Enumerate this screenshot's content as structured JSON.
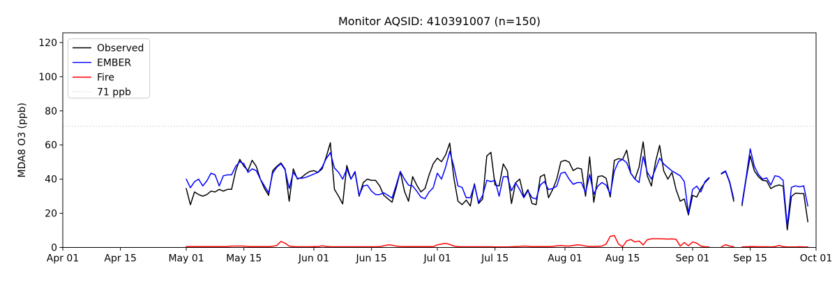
{
  "title": "Monitor AQSID: 410391007 (n=150)",
  "axes": {
    "ylabel": "MDA8 O3 (ppb)",
    "yticks": [
      0,
      20,
      40,
      60,
      80,
      100,
      120
    ],
    "xticks": [
      {
        "day": 0,
        "label": "Apr 01"
      },
      {
        "day": 14,
        "label": "Apr 15"
      },
      {
        "day": 30,
        "label": "May 01"
      },
      {
        "day": 44,
        "label": "May 15"
      },
      {
        "day": 61,
        "label": "Jun 01"
      },
      {
        "day": 75,
        "label": "Jun 15"
      },
      {
        "day": 91,
        "label": "Jul 01"
      },
      {
        "day": 105,
        "label": "Jul 15"
      },
      {
        "day": 122,
        "label": "Aug 01"
      },
      {
        "day": 136,
        "label": "Aug 15"
      },
      {
        "day": 153,
        "label": "Sep 01"
      },
      {
        "day": 167,
        "label": "Sep 15"
      },
      {
        "day": 183,
        "label": "Oct 01"
      }
    ]
  },
  "legend": {
    "entries": [
      {
        "label": "Observed",
        "color": "#000000",
        "style": "solid"
      },
      {
        "label": "EMBER",
        "color": "#0000ff",
        "style": "solid"
      },
      {
        "label": "Fire",
        "color": "#ff0000",
        "style": "solid"
      },
      {
        "label": "71 ppb",
        "color": "#d3d3d3",
        "style": "dotted"
      }
    ]
  },
  "chart_data": {
    "type": "line",
    "title": "Monitor AQSID: 410391007 (n=150)",
    "xlabel": "",
    "ylabel": "MDA8 O3 (ppb)",
    "x_axis_range": [
      "Apr 01",
      "Oct 01"
    ],
    "x_total_days": 183,
    "x_start_label": "May 01",
    "x_start_day_offset": 30,
    "x_step_days": 1,
    "ylim": [
      0,
      125.7
    ],
    "grid": false,
    "legend_position": "upper-left",
    "threshold": {
      "value": 71,
      "label": "71 ppb",
      "color": "#d3d3d3",
      "style": "dotted"
    },
    "series": [
      {
        "name": "Observed",
        "color": "#000000",
        "values": [
          34.5,
          25,
          32.5,
          31,
          30,
          31,
          33,
          32.5,
          34,
          33,
          34,
          34,
          44.8,
          51.6,
          47.5,
          45,
          51,
          47.5,
          40,
          34.5,
          30.5,
          45,
          47.5,
          49.5,
          46,
          27,
          46,
          40,
          41,
          43,
          44.5,
          45,
          44,
          46,
          53,
          61.3,
          34,
          30,
          25.5,
          48,
          40,
          44,
          30,
          38,
          40,
          39.3,
          39.3,
          36,
          30.5,
          28.5,
          26.5,
          35,
          44.5,
          33,
          27,
          41.5,
          36.5,
          32.5,
          34.5,
          42.5,
          49,
          52.3,
          50.2,
          54.3,
          61.1,
          40.7,
          27.1,
          25.1,
          27.7,
          24.3,
          37.3,
          25.7,
          28.4,
          53.6,
          55.7,
          36.6,
          36,
          48.9,
          44.8,
          25.7,
          37.9,
          40,
          29.8,
          33.9,
          25.7,
          25.1,
          41.4,
          42.7,
          29.1,
          33.9,
          40,
          50.2,
          51,
          50,
          45,
          46.5,
          46,
          30,
          53,
          26.5,
          41.5,
          42,
          40.5,
          29.5,
          51,
          52,
          51.5,
          57,
          43.5,
          40,
          47,
          61.8,
          42,
          36,
          50,
          59.8,
          44.8,
          40,
          44,
          33.9,
          27.1,
          28.4,
          19,
          30.5,
          29.5,
          34.5,
          38,
          40.5,
          null,
          null,
          43,
          44.5,
          38,
          27,
          null,
          24.5,
          40,
          53.6,
          44.8,
          41.4,
          39.3,
          39,
          34.5,
          35.9,
          36.6,
          35.9,
          10.3,
          29.8,
          31.8,
          31.6,
          31.5,
          15
        ]
      },
      {
        "name": "EMBER",
        "color": "#0000ff",
        "values": [
          40,
          35,
          38.5,
          40,
          36,
          39,
          43.5,
          42.5,
          36,
          42,
          42.5,
          42.5,
          47.5,
          50.2,
          49,
          44,
          46,
          45,
          40,
          36,
          32,
          43.5,
          47,
          49,
          45.5,
          34.5,
          44,
          40.5,
          40.5,
          41,
          42,
          43,
          44,
          47,
          52,
          55.5,
          46.5,
          44,
          40,
          46,
          40,
          44.5,
          30.5,
          36,
          36.5,
          33,
          31,
          31,
          32,
          30.5,
          29,
          36.5,
          44.5,
          40,
          36.5,
          36,
          33,
          29.5,
          28.5,
          32.5,
          35,
          43.5,
          40,
          47,
          56.3,
          47.5,
          36,
          35.2,
          29.1,
          29.1,
          36.6,
          26.4,
          30.5,
          39.3,
          38.6,
          39.3,
          30,
          41.4,
          41.4,
          33.2,
          37.9,
          33.9,
          29.1,
          33.2,
          29.1,
          28.4,
          36.6,
          38.6,
          33.9,
          34.5,
          35.9,
          43.4,
          44.1,
          40,
          37,
          38,
          38,
          32,
          42.7,
          31.2,
          36,
          38,
          36.5,
          31.2,
          44.8,
          50.2,
          51.6,
          49.6,
          43.4,
          40,
          38,
          53.3,
          44.1,
          40,
          46,
          52.3,
          48.9,
          46.8,
          44.8,
          43.4,
          42,
          38.6,
          20,
          34,
          35.9,
          32.5,
          38.6,
          40.9,
          null,
          null,
          43.4,
          44.8,
          38.6,
          28.4,
          null,
          25.7,
          41,
          57.7,
          47.5,
          42.7,
          40,
          40.7,
          36.6,
          42,
          41.5,
          39.3,
          12.5,
          35.2,
          36.1,
          35.5,
          36.1,
          24.3
        ]
      },
      {
        "name": "Fire",
        "color": "#ff0000",
        "values": [
          0.5,
          0.5,
          0.5,
          0.5,
          0.5,
          0.5,
          0.5,
          0.5,
          0.5,
          0.5,
          0.5,
          0.8,
          0.8,
          0.8,
          0.8,
          0.5,
          0.5,
          0.5,
          0.5,
          0.5,
          0.5,
          0.7,
          1.2,
          3.5,
          2.5,
          0.8,
          0.5,
          0.4,
          0.4,
          0.4,
          0.4,
          0.5,
          0.5,
          1.0,
          0.6,
          0.4,
          0.4,
          0.4,
          0.4,
          0.4,
          0.4,
          0.4,
          0.4,
          0.4,
          0.4,
          0.4,
          0.4,
          0.5,
          1.0,
          1.5,
          1.3,
          0.8,
          0.6,
          0.5,
          0.5,
          0.5,
          0.5,
          0.5,
          0.5,
          0.5,
          0.5,
          1.5,
          2.0,
          2.4,
          1.8,
          0.8,
          0.5,
          0.4,
          0.4,
          0.4,
          0.4,
          0.4,
          0.4,
          0.4,
          0.4,
          0.3,
          0.3,
          0.3,
          0.3,
          0.4,
          0.5,
          0.6,
          0.8,
          0.7,
          0.5,
          0.5,
          0.5,
          0.5,
          0.5,
          0.6,
          1.0,
          1.1,
          0.9,
          0.8,
          1.2,
          1.5,
          1.3,
          0.8,
          0.6,
          0.6,
          0.7,
          0.8,
          2.0,
          6.5,
          7.0,
          2.0,
          0.4,
          3.9,
          4.6,
          3.2,
          3.8,
          1.5,
          4.5,
          5.1,
          5.1,
          5.1,
          5.0,
          4.9,
          5.0,
          4.8,
          0.8,
          2.9,
          1.0,
          3.2,
          2.5,
          0.8,
          0.4,
          0.3,
          null,
          null,
          0.4,
          1.6,
          0.8,
          0.4,
          null,
          0.3,
          0.4,
          0.5,
          0.5,
          0.4,
          0.4,
          0.4,
          0.3,
          0.5,
          1.2,
          0.5,
          0.3,
          0.3,
          0.3,
          0.4,
          0.3,
          0.3
        ]
      }
    ]
  },
  "style": {
    "background": "#ffffff",
    "spine_color": "#000000",
    "legend_edge_color": "#cccccc"
  }
}
